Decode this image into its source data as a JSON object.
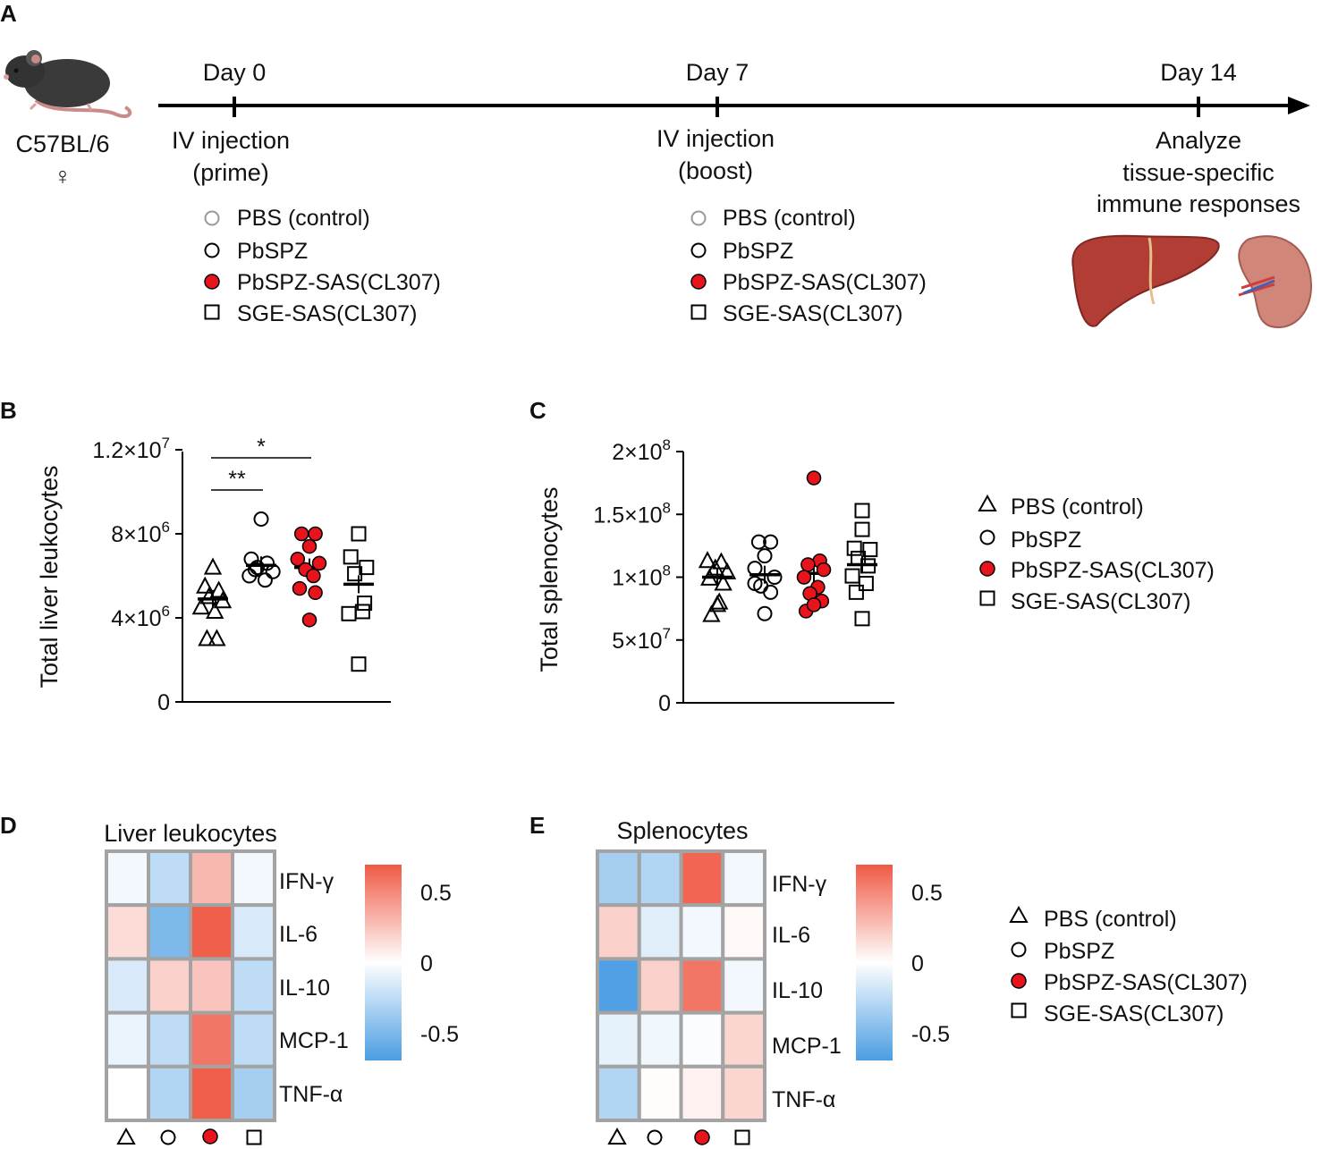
{
  "panels": {
    "a": "A",
    "b": "B",
    "c": "C",
    "d": "D",
    "e": "E"
  },
  "timeline": {
    "strain": "C57BL/6",
    "sex_symbol": "♀",
    "days": [
      "Day 0",
      "Day 7",
      "Day 14"
    ],
    "prime": [
      "IV injection",
      "(prime)"
    ],
    "boost": [
      "IV injection",
      "(boost)"
    ],
    "analyze": [
      "Analyze",
      "tissue-specific",
      "immune responses"
    ]
  },
  "groups": [
    "PBS (control)",
    "PbSPZ",
    "PbSPZ-SAS(CL307)",
    "SGE-SAS(CL307)"
  ],
  "colors": {
    "red": "#e8141b",
    "control_marker": "#999999",
    "heat_pos": "#ef5a45",
    "heat_neg": "#4a9de3",
    "grid": "#a3a3a3"
  },
  "chart_data": [
    {
      "id": "B",
      "type": "scatter",
      "ylabel": "Total liver leukocytes",
      "ylim": [
        0,
        12000000
      ],
      "yticks": [
        {
          "value": 0,
          "mant": "0",
          "exp": ""
        },
        {
          "value": 4000000,
          "mant": "4×10",
          "exp": "6"
        },
        {
          "value": 8000000,
          "mant": "8×10",
          "exp": "6"
        },
        {
          "value": 12000000,
          "mant": "1.2×10",
          "exp": "7"
        }
      ],
      "series": [
        {
          "name": "PBS (control)",
          "marker": "triangle",
          "mean": 4900000,
          "points": [
            [
              0,
              6400000
            ],
            [
              -0.4,
              5500000
            ],
            [
              0.3,
              5300000
            ],
            [
              -0.2,
              5000000
            ],
            [
              0.5,
              4800000
            ],
            [
              -0.6,
              4500000
            ],
            [
              0.1,
              4300000
            ],
            [
              -0.3,
              3000000
            ],
            [
              0.2,
              3000000
            ]
          ]
        },
        {
          "name": "PbSPZ",
          "marker": "circle",
          "mean": 6500000,
          "points": [
            [
              0,
              8700000
            ],
            [
              -0.5,
              6800000
            ],
            [
              0.3,
              6600000
            ],
            [
              -0.2,
              6400000
            ],
            [
              0.6,
              6200000
            ],
            [
              -0.6,
              6000000
            ],
            [
              0.2,
              5800000
            ],
            [
              -0.3,
              6300000
            ]
          ]
        },
        {
          "name": "PbSPZ-SAS(CL307)",
          "marker": "circle-filled",
          "mean": 6400000,
          "points": [
            [
              -0.4,
              8000000
            ],
            [
              0.3,
              8000000
            ],
            [
              0,
              7400000
            ],
            [
              -0.6,
              6800000
            ],
            [
              0.5,
              6600000
            ],
            [
              -0.2,
              6300000
            ],
            [
              0.2,
              6000000
            ],
            [
              -0.5,
              5400000
            ],
            [
              0.3,
              5200000
            ],
            [
              0,
              3900000
            ]
          ]
        },
        {
          "name": "SGE-SAS(CL307)",
          "marker": "square",
          "mean": 5600000,
          "points": [
            [
              0,
              8000000
            ],
            [
              -0.4,
              6900000
            ],
            [
              0.4,
              6400000
            ],
            [
              -0.2,
              6100000
            ],
            [
              0.3,
              4700000
            ],
            [
              -0.5,
              4200000
            ],
            [
              0.2,
              4300000
            ],
            [
              0,
              1800000
            ]
          ]
        }
      ],
      "significance": [
        {
          "label": "**",
          "groups": [
            0,
            1
          ]
        },
        {
          "label": "*",
          "groups": [
            0,
            2
          ]
        }
      ]
    },
    {
      "id": "C",
      "type": "scatter",
      "ylabel": "Total splenocytes",
      "ylim": [
        0,
        200000000
      ],
      "yticks": [
        {
          "value": 0,
          "mant": "0",
          "exp": ""
        },
        {
          "value": 50000000,
          "mant": "5×10",
          "exp": "7"
        },
        {
          "value": 100000000,
          "mant": "1×10",
          "exp": "8"
        },
        {
          "value": 150000000,
          "mant": "1.5×10",
          "exp": "8"
        },
        {
          "value": 200000000,
          "mant": "2×10",
          "exp": "8"
        }
      ],
      "series": [
        {
          "name": "PBS (control)",
          "marker": "triangle",
          "mean": 100000000,
          "points": [
            [
              -0.5,
              113000000
            ],
            [
              0.2,
              112000000
            ],
            [
              -0.1,
              107000000
            ],
            [
              0.5,
              104000000
            ],
            [
              -0.4,
              99000000
            ],
            [
              0.3,
              95000000
            ],
            [
              0,
              78000000
            ],
            [
              -0.3,
              70000000
            ],
            [
              0.1,
              80000000
            ]
          ]
        },
        {
          "name": "PbSPZ",
          "marker": "circle",
          "mean": 102000000,
          "points": [
            [
              -0.3,
              128000000
            ],
            [
              0.3,
              128000000
            ],
            [
              0,
              117000000
            ],
            [
              -0.5,
              107000000
            ],
            [
              0.5,
              100000000
            ],
            [
              -0.2,
              93000000
            ],
            [
              0.3,
              88000000
            ],
            [
              0,
              71000000
            ],
            [
              -0.5,
              95000000
            ]
          ]
        },
        {
          "name": "PbSPZ-SAS(CL307)",
          "marker": "circle-filled",
          "mean": 103000000,
          "points": [
            [
              0,
              179000000
            ],
            [
              0.3,
              113000000
            ],
            [
              -0.3,
              110000000
            ],
            [
              0.5,
              106000000
            ],
            [
              -0.5,
              100000000
            ],
            [
              0.2,
              92000000
            ],
            [
              -0.2,
              87000000
            ],
            [
              0.4,
              81000000
            ],
            [
              -0.4,
              73000000
            ],
            [
              0,
              78000000
            ]
          ]
        },
        {
          "name": "SGE-SAS(CL307)",
          "marker": "square",
          "mean": 110000000,
          "points": [
            [
              0,
              153000000
            ],
            [
              0,
              138000000
            ],
            [
              -0.4,
              123000000
            ],
            [
              0.4,
              122000000
            ],
            [
              -0.2,
              115000000
            ],
            [
              0.3,
              109000000
            ],
            [
              -0.5,
              101000000
            ],
            [
              0.2,
              95000000
            ],
            [
              -0.3,
              88000000
            ],
            [
              0,
              67000000
            ]
          ]
        }
      ],
      "significance": []
    },
    {
      "id": "D",
      "type": "heatmap",
      "title": "Liver leukocytes",
      "rows": [
        "IFN-γ",
        "IL-6",
        "IL-10",
        "MCP-1",
        "TNF-α"
      ],
      "columns": [
        "PBS (control)",
        "PbSPZ",
        "PbSPZ-SAS(CL307)",
        "SGE-SAS(CL307)"
      ],
      "values": [
        [
          -0.05,
          -0.25,
          0.3,
          -0.05
        ],
        [
          0.15,
          -0.5,
          0.68,
          -0.15
        ],
        [
          -0.15,
          0.2,
          0.25,
          -0.25
        ],
        [
          -0.08,
          -0.25,
          0.58,
          -0.25
        ],
        [
          0.0,
          -0.3,
          0.68,
          -0.35
        ]
      ],
      "colorbar": {
        "ticks": [
          {
            "value": 0.5,
            "label": "0.5"
          },
          {
            "value": 0,
            "label": "0"
          },
          {
            "value": -0.5,
            "label": "-0.5"
          }
        ],
        "range": [
          -0.7,
          0.7
        ]
      }
    },
    {
      "id": "E",
      "type": "heatmap",
      "title": "Splenocytes",
      "rows": [
        "IFN-γ",
        "IL-6",
        "IL-10",
        "MCP-1",
        "TNF-α"
      ],
      "columns": [
        "PBS (control)",
        "PbSPZ",
        "PbSPZ-SAS(CL307)",
        "SGE-SAS(CL307)"
      ],
      "values": [
        [
          -0.35,
          -0.3,
          0.65,
          -0.05
        ],
        [
          0.2,
          -0.12,
          -0.05,
          0.03
        ],
        [
          -0.68,
          0.2,
          0.58,
          -0.05
        ],
        [
          -0.1,
          -0.06,
          -0.02,
          0.18
        ],
        [
          -0.3,
          0.01,
          0.06,
          0.18
        ]
      ],
      "colorbar": {
        "ticks": [
          {
            "value": 0.5,
            "label": "0.5"
          },
          {
            "value": 0,
            "label": "0"
          },
          {
            "value": -0.5,
            "label": "-0.5"
          }
        ],
        "range": [
          -0.7,
          0.7
        ]
      }
    }
  ]
}
